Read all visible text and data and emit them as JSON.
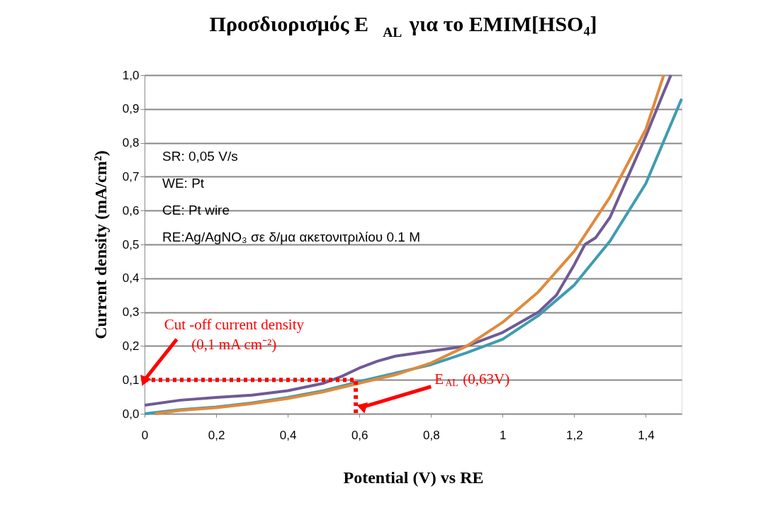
{
  "chart_data": {
    "type": "line",
    "title": "Προσδιορισμός E$_{AL}$ για το EMIM[HSO₄]",
    "xlabel": "Potential (V) vs RE",
    "ylabel": "Current  density (mA/cm²)",
    "xlim": [
      0,
      1.5
    ],
    "ylim": [
      0,
      1.0
    ],
    "xticks": [
      {
        "value": 0,
        "label": "0"
      },
      {
        "value": 0.2,
        "label": "0,2"
      },
      {
        "value": 0.4,
        "label": "0,4"
      },
      {
        "value": 0.6,
        "label": "0,6"
      },
      {
        "value": 0.8,
        "label": "0,8"
      },
      {
        "value": 1,
        "label": "1"
      },
      {
        "value": 1.2,
        "label": "1,2"
      },
      {
        "value": 1.4,
        "label": "1,4"
      }
    ],
    "yticks": [
      {
        "value": 0,
        "label": "0,0"
      },
      {
        "value": 0.1,
        "label": "0,1"
      },
      {
        "value": 0.2,
        "label": "0,2"
      },
      {
        "value": 0.3,
        "label": "0,3"
      },
      {
        "value": 0.4,
        "label": "0,4"
      },
      {
        "value": 0.5,
        "label": "0,5"
      },
      {
        "value": 0.6,
        "label": "0,6"
      },
      {
        "value": 0.7,
        "label": "0,7"
      },
      {
        "value": 0.8,
        "label": "0,8"
      },
      {
        "value": 0.9,
        "label": "0,9"
      },
      {
        "value": 1.0,
        "label": "1,0"
      }
    ],
    "grid": "y",
    "marker": "none",
    "series": [
      {
        "color": "#6f5a96",
        "x": [
          0,
          0.1,
          0.2,
          0.3,
          0.4,
          0.5,
          0.55,
          0.6,
          0.65,
          0.7,
          0.8,
          0.9,
          1.0,
          1.1,
          1.15,
          1.2,
          1.23,
          1.26,
          1.3,
          1.35,
          1.4,
          1.45,
          1.47
        ],
        "values": [
          0.025,
          0.04,
          0.048,
          0.055,
          0.068,
          0.09,
          0.11,
          0.135,
          0.155,
          0.17,
          0.185,
          0.2,
          0.24,
          0.3,
          0.35,
          0.44,
          0.5,
          0.52,
          0.58,
          0.7,
          0.82,
          0.95,
          1.0
        ]
      },
      {
        "color": "#3f9cb0",
        "x": [
          0,
          0.1,
          0.2,
          0.3,
          0.4,
          0.5,
          0.6,
          0.7,
          0.8,
          0.9,
          1.0,
          1.1,
          1.2,
          1.3,
          1.4,
          1.5
        ],
        "values": [
          0,
          0.012,
          0.02,
          0.032,
          0.048,
          0.068,
          0.095,
          0.12,
          0.145,
          0.18,
          0.22,
          0.29,
          0.38,
          0.51,
          0.68,
          0.93
        ]
      },
      {
        "color": "#e08a3c",
        "x": [
          0.03,
          0.1,
          0.2,
          0.3,
          0.4,
          0.5,
          0.6,
          0.7,
          0.8,
          0.9,
          1.0,
          1.1,
          1.2,
          1.3,
          1.4,
          1.45
        ],
        "values": [
          0,
          0.01,
          0.018,
          0.03,
          0.045,
          0.065,
          0.09,
          0.115,
          0.15,
          0.2,
          0.27,
          0.36,
          0.48,
          0.64,
          0.84,
          1.0
        ]
      },
      {
        "color": "#ff0000",
        "line_style": "dotted",
        "x": [
          0,
          0.59,
          0.59
        ],
        "values": [
          0.1,
          0.1,
          0
        ]
      }
    ],
    "annotations": [
      {
        "text": "Cut -off current density\n(0,1 mA cm⁻²)",
        "x": 0,
        "y": 0.1
      },
      {
        "text": "E$_{AL}$ (0,63V)",
        "x": 0.61,
        "y": 0.02
      },
      "SR: 0,05 V/s",
      "WE: Pt",
      "CE: Pt wire",
      "RE:Ag/AgNO₃ σε δ/μα ακετονιτριλίου 0.1 M"
    ]
  }
}
